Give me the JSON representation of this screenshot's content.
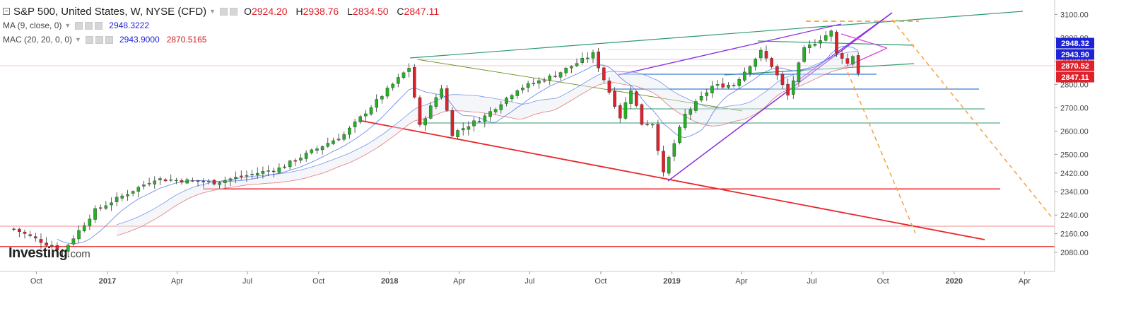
{
  "legend": {
    "title": "S&P 500, United States, W, NYSE (CFD)",
    "ohlc": {
      "o_label": "O",
      "o": "2924.20",
      "h_label": "H",
      "h": "2938.76",
      "l_label": "L",
      "l": "2834.50",
      "c_label": "C",
      "c": "2847.11"
    },
    "ma_label": "MA (9, close, 0)",
    "ma_value": "2948.3222",
    "mac_label": "MAC (20, 20, 0, 0)",
    "mac_upper": "2943.9000",
    "mac_lower": "2870.5165"
  },
  "logo": {
    "main": "Investing",
    "suffix": ".com"
  },
  "colors": {
    "up": "#22b322",
    "down": "#e0212b",
    "ma": "#3b5fe0",
    "mac_upper": "#5a7de0",
    "mac_lower": "#e05858",
    "red_line": "#e8262a",
    "green_line": "#2e9a6e",
    "blue_line": "#3a7bd5",
    "purple_line": "#8b2be2",
    "magenta_line": "#e040e0",
    "orange_dash": "#f5a040",
    "olive_line": "#6b8e23"
  },
  "chart_data": {
    "type": "candlestick",
    "timeframe": "W",
    "x_ticks": [
      "Oct",
      "2017",
      "Apr",
      "Jul",
      "Oct",
      "2018",
      "Apr",
      "Jul",
      "Oct",
      "2019",
      "Apr",
      "Jul",
      "Oct",
      "2020",
      "Apr"
    ],
    "y_ticks": [
      "3100.00",
      "3000.00",
      "2900.00",
      "2800.00",
      "2700.00",
      "2600.00",
      "2500.00",
      "2420.00",
      "2340.00",
      "2240.00",
      "2160.00",
      "2080.00"
    ],
    "ylim": [
      2010,
      3120
    ],
    "price_labels": [
      {
        "text": "2948.32",
        "value": 2948.32,
        "color": "#1e23d6"
      },
      {
        "text": "2943.90",
        "value": 2943.9,
        "color": "#1e23d6"
      },
      {
        "text": "2870.52",
        "value": 2870.52,
        "color": "#e0212b"
      },
      {
        "text": "2847.11",
        "value": 2847.11,
        "color": "#e0212b"
      }
    ],
    "key_prices": [
      {
        "t": "2016-09-02",
        "p": 2180
      },
      {
        "t": "2016-11-04",
        "p": 2085
      },
      {
        "t": "2016-12-16",
        "p": 2260
      },
      {
        "t": "2017-03-03",
        "p": 2395
      },
      {
        "t": "2017-05-19",
        "p": 2380
      },
      {
        "t": "2017-08-11",
        "p": 2440
      },
      {
        "t": "2017-11-03",
        "p": 2585
      },
      {
        "t": "2018-01-26",
        "p": 2872
      },
      {
        "t": "2018-02-09",
        "p": 2620
      },
      {
        "t": "2018-03-09",
        "p": 2786
      },
      {
        "t": "2018-03-23",
        "p": 2588
      },
      {
        "t": "2018-05-04",
        "p": 2663
      },
      {
        "t": "2018-06-15",
        "p": 2780
      },
      {
        "t": "2018-08-03",
        "p": 2840
      },
      {
        "t": "2018-09-21",
        "p": 2930
      },
      {
        "t": "2018-10-26",
        "p": 2660
      },
      {
        "t": "2018-11-09",
        "p": 2780
      },
      {
        "t": "2018-11-23",
        "p": 2632
      },
      {
        "t": "2018-12-07",
        "p": 2633
      },
      {
        "t": "2018-12-21",
        "p": 2416
      },
      {
        "t": "2018-12-28",
        "p": 2485
      },
      {
        "t": "2019-01-18",
        "p": 2670
      },
      {
        "t": "2019-02-22",
        "p": 2792
      },
      {
        "t": "2019-03-22",
        "p": 2800
      },
      {
        "t": "2019-04-26",
        "p": 2940
      },
      {
        "t": "2019-05-10",
        "p": 2880
      },
      {
        "t": "2019-05-31",
        "p": 2752
      },
      {
        "t": "2019-06-21",
        "p": 2950
      },
      {
        "t": "2019-07-26",
        "p": 3025
      },
      {
        "t": "2019-08-02",
        "p": 2932
      },
      {
        "t": "2019-08-09",
        "p": 2918
      },
      {
        "t": "2019-08-16",
        "p": 2889
      },
      {
        "t": "2019-08-23",
        "p": 2924
      },
      {
        "t": "2019-08-30",
        "p": 2847
      }
    ],
    "annotations": {
      "horizontal_red": [
        2352,
        2192,
        2105
      ],
      "horizontal_green": [
        2640,
        2582
      ],
      "horizontal_blue": [
        2725,
        2820
      ],
      "horizontal_faint_red": [
        2880
      ]
    }
  }
}
